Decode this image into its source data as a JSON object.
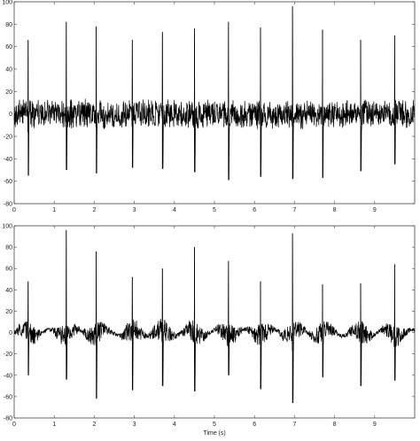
{
  "chart_data": [
    {
      "type": "line",
      "xlim": [
        0,
        10
      ],
      "ylim": [
        -80,
        100
      ],
      "xticks": [
        0,
        1,
        2,
        3,
        4,
        5,
        6,
        7,
        8,
        9
      ],
      "yticks": [
        -80,
        -60,
        -40,
        -20,
        0,
        20,
        40,
        60,
        80,
        100
      ],
      "xlabel": "",
      "ylabel": "",
      "grid": false,
      "spikes": [
        {
          "x": 0.35,
          "peak": 66,
          "trough": -55
        },
        {
          "x": 1.3,
          "peak": 82,
          "trough": -50
        },
        {
          "x": 2.05,
          "peak": 78,
          "trough": -53
        },
        {
          "x": 2.95,
          "peak": 66,
          "trough": -48
        },
        {
          "x": 3.7,
          "peak": 73,
          "trough": -49
        },
        {
          "x": 4.5,
          "peak": 76,
          "trough": -52
        },
        {
          "x": 5.35,
          "peak": 82,
          "trough": -59
        },
        {
          "x": 6.15,
          "peak": 77,
          "trough": -56
        },
        {
          "x": 6.95,
          "peak": 96,
          "trough": -58
        },
        {
          "x": 7.7,
          "peak": 75,
          "trough": -57
        },
        {
          "x": 8.65,
          "peak": 66,
          "trough": -51
        },
        {
          "x": 9.5,
          "peak": 70,
          "trough": -45
        }
      ],
      "noise_amplitude": 14
    },
    {
      "type": "line",
      "xlim": [
        0,
        10
      ],
      "ylim": [
        -80,
        100
      ],
      "xticks": [
        0,
        1,
        2,
        3,
        4,
        5,
        6,
        7,
        8,
        9
      ],
      "yticks": [
        -80,
        -60,
        -40,
        -20,
        0,
        20,
        40,
        60,
        80,
        100
      ],
      "xlabel": "Time (s)",
      "ylabel": "",
      "grid": false,
      "spikes": [
        {
          "x": 0.35,
          "peak": 48,
          "trough": -40
        },
        {
          "x": 1.3,
          "peak": 96,
          "trough": -44
        },
        {
          "x": 2.05,
          "peak": 76,
          "trough": -62
        },
        {
          "x": 2.95,
          "peak": 52,
          "trough": -54
        },
        {
          "x": 3.7,
          "peak": 60,
          "trough": -50
        },
        {
          "x": 4.5,
          "peak": 80,
          "trough": -55
        },
        {
          "x": 5.35,
          "peak": 67,
          "trough": -40
        },
        {
          "x": 6.15,
          "peak": 48,
          "trough": -53
        },
        {
          "x": 6.95,
          "peak": 93,
          "trough": -66
        },
        {
          "x": 7.7,
          "peak": 45,
          "trough": -42
        },
        {
          "x": 8.65,
          "peak": 46,
          "trough": -50
        },
        {
          "x": 9.5,
          "peak": 64,
          "trough": -45
        }
      ],
      "noise_amplitude": 8
    }
  ]
}
